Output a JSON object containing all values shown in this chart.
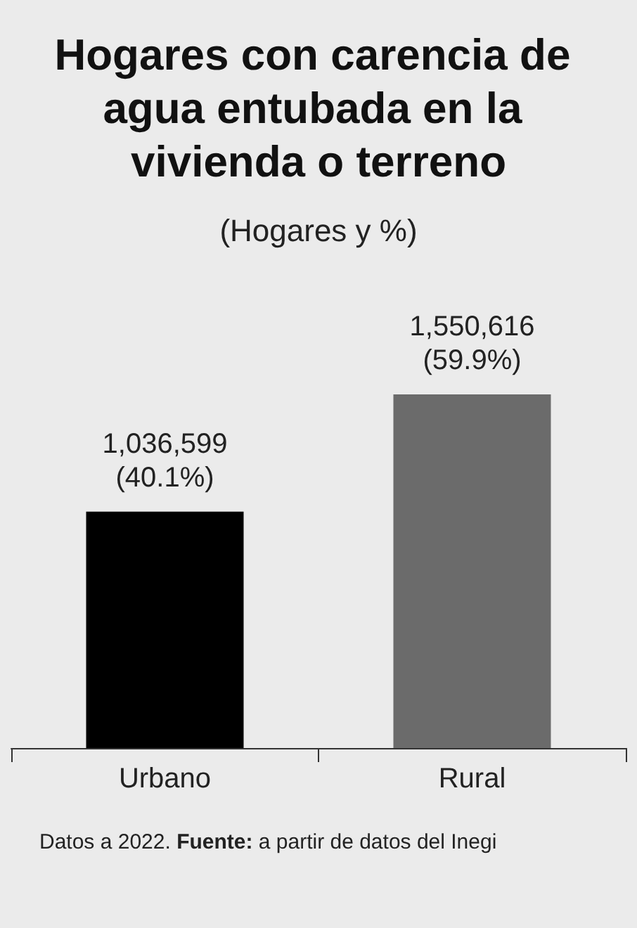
{
  "chart_data": {
    "type": "bar",
    "title": "Hogares con carencia de agua entubada en la vivienda o terreno",
    "subtitle": "(Hogares y %)",
    "categories": [
      "Urbano",
      "Rural"
    ],
    "values": [
      1036599,
      1550616
    ],
    "colors": [
      "#000000",
      "#6b6b6b"
    ],
    "value_labels": [
      "1,036,599\n(40.1%)",
      "1,550,616\n(59.9%)"
    ],
    "annotations": [
      "Datos a 2022. Fuente: a partir de datos del Inegi"
    ],
    "tick_labels": "x",
    "grid": false
  }
}
